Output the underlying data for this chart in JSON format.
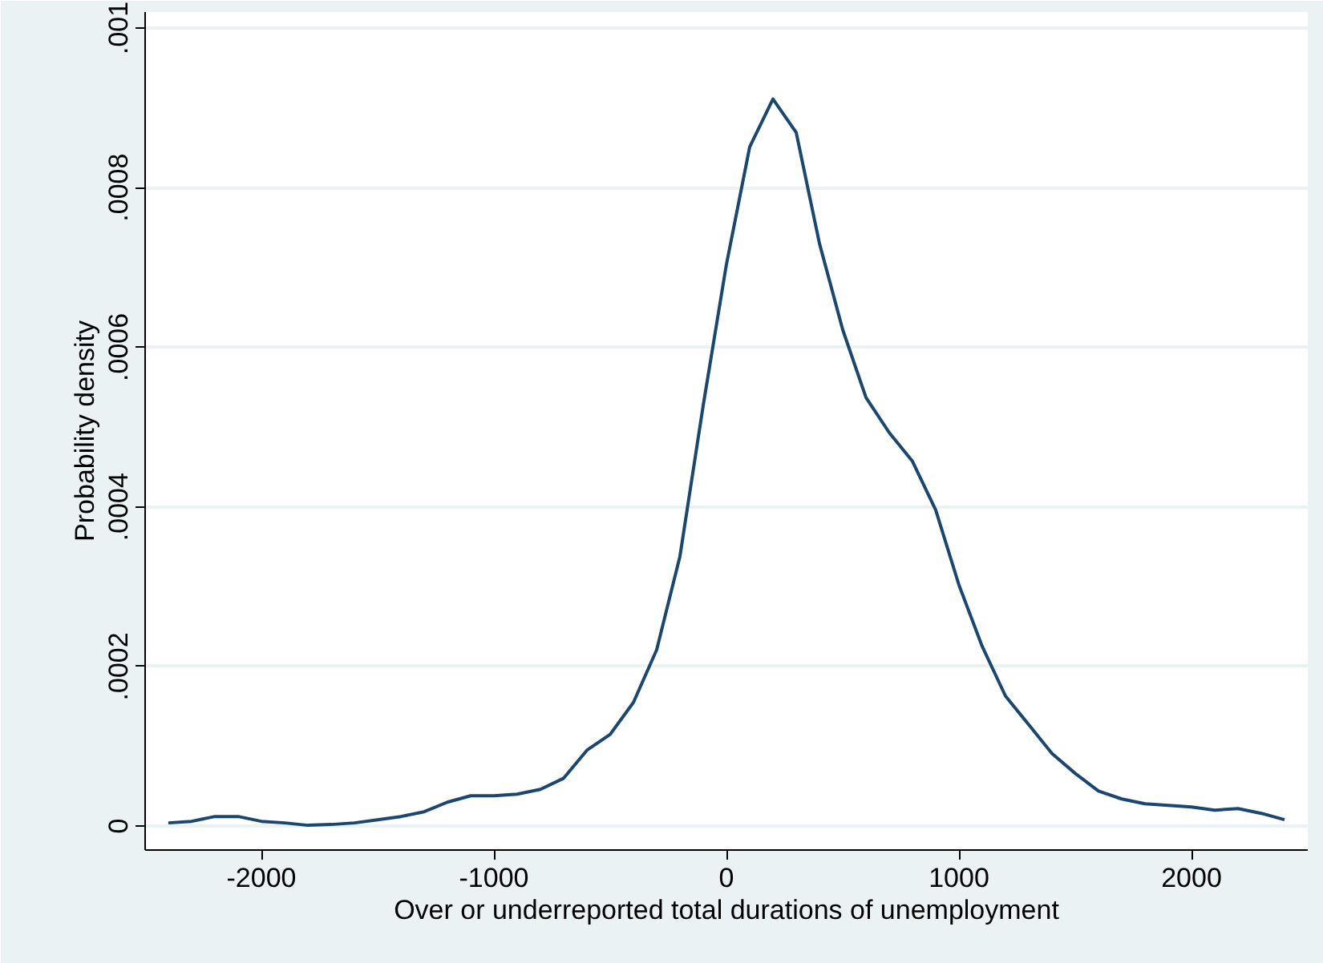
{
  "chart_data": {
    "type": "line",
    "xlabel": "Over or underreported total durations of unemployment",
    "ylabel": "Probability density",
    "x": [
      -2400,
      -2300,
      -2200,
      -2100,
      -2000,
      -1900,
      -1800,
      -1700,
      -1600,
      -1500,
      -1400,
      -1300,
      -1200,
      -1100,
      -1000,
      -900,
      -800,
      -700,
      -600,
      -500,
      -400,
      -300,
      -200,
      -100,
      0,
      100,
      200,
      300,
      400,
      500,
      600,
      700,
      800,
      900,
      1000,
      1100,
      1200,
      1300,
      1400,
      1500,
      1600,
      1700,
      1800,
      1900,
      2000,
      2100,
      2200,
      2300,
      2400
    ],
    "series": [
      {
        "color": "#1a476f",
        "values": [
          4e-06,
          6e-06,
          1.2e-05,
          1.2e-05,
          6e-06,
          4e-06,
          1e-06,
          2e-06,
          4e-06,
          8e-06,
          1.2e-05,
          1.8e-05,
          3e-05,
          3.8e-05,
          3.8e-05,
          4e-05,
          4.6e-05,
          6e-05,
          9.5e-05,
          0.000115,
          0.000155,
          0.000221,
          0.000338,
          0.000527,
          0.000704,
          0.000851,
          0.000911,
          0.000869,
          0.00073,
          0.000622,
          0.000537,
          0.000493,
          0.000457,
          0.000396,
          0.000302,
          0.000225,
          0.000163,
          0.000127,
          9.1e-05,
          6.6e-05,
          4.4e-05,
          3.4e-05,
          2.8e-05,
          2.6e-05,
          2.4e-05,
          2e-05,
          2.2e-05,
          1.6e-05,
          8e-06
        ]
      }
    ],
    "xlim": [
      -2500,
      2500
    ],
    "ylim": [
      -3e-05,
      0.00102
    ],
    "xticks": [
      -2000,
      -1000,
      0,
      1000,
      2000
    ],
    "yticks": [
      0,
      {
        "value": 0.0002,
        "label": ".0002"
      },
      {
        "value": 0.0004,
        "label": ".0004"
      },
      {
        "value": 0.0006,
        "label": ".0006"
      },
      {
        "value": 0.0008,
        "label": ".0008"
      },
      {
        "value": 0.001,
        "label": ".001"
      }
    ],
    "grid": "y",
    "marker": "none",
    "line_style": "solid"
  }
}
